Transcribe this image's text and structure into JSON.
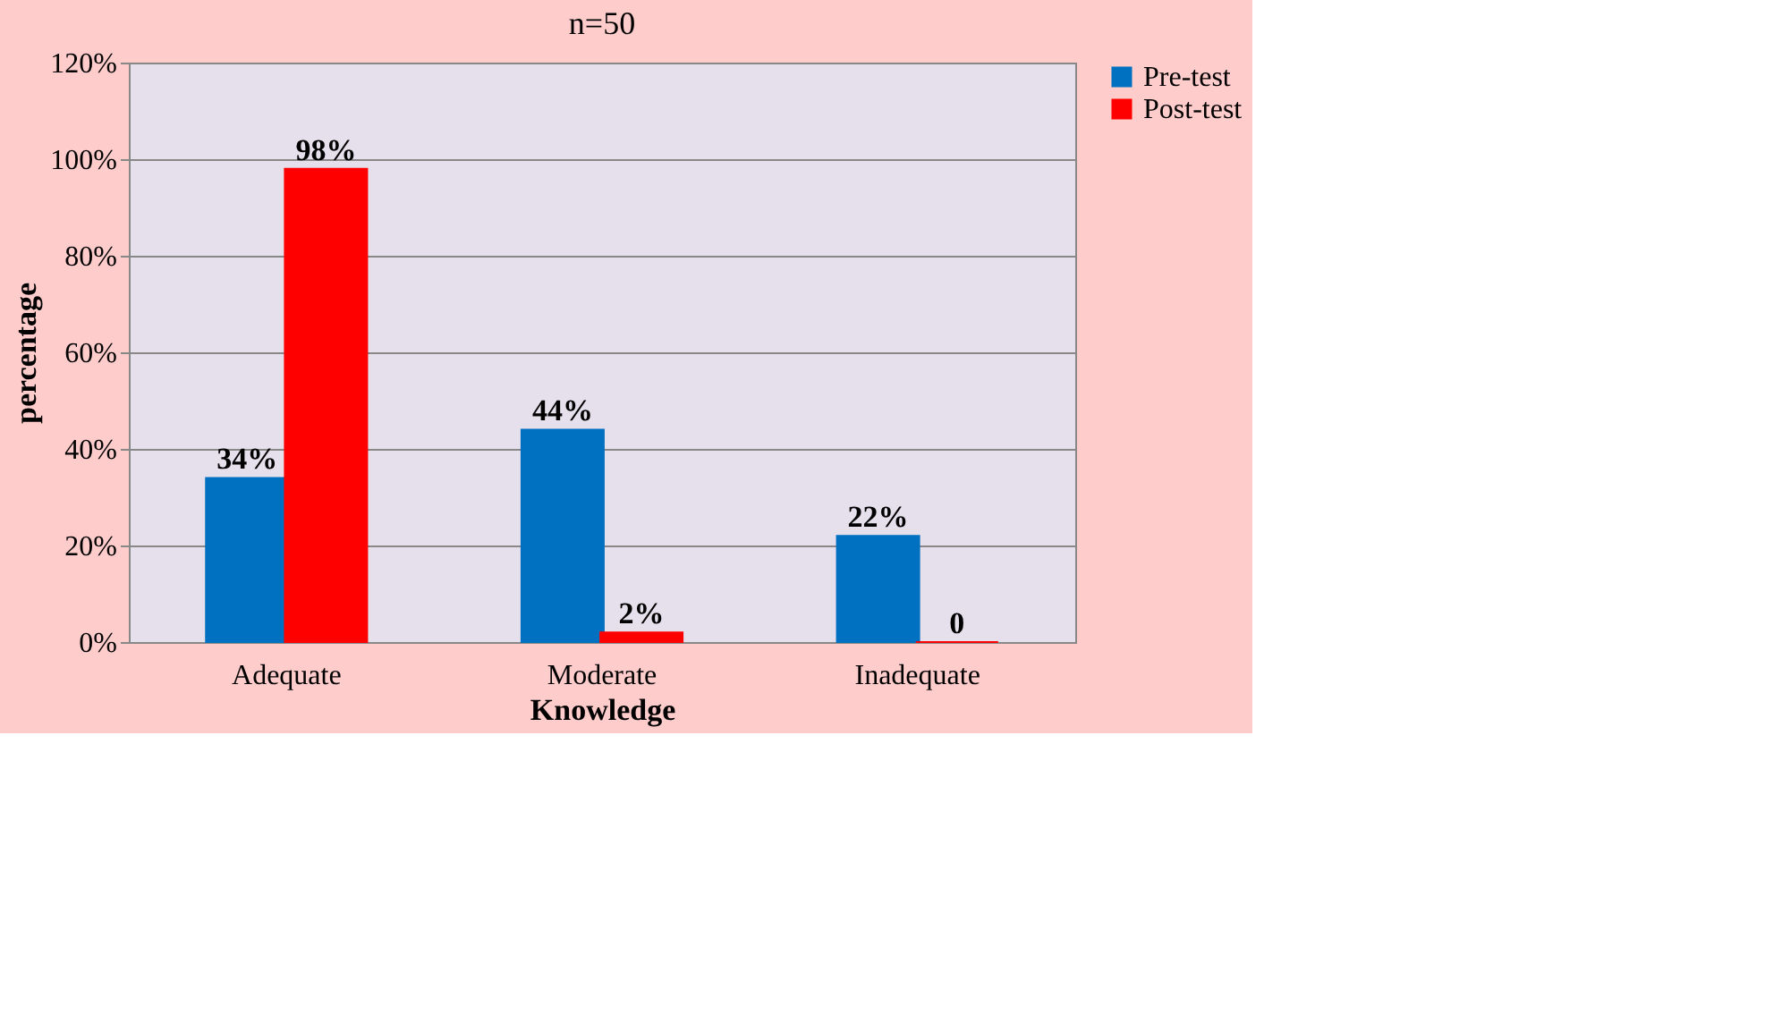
{
  "chart_data": {
    "type": "bar",
    "title": "n=50",
    "xlabel": "Knowledge",
    "ylabel": "percentage",
    "categories": [
      "Adequate",
      "Moderate",
      "Inadequate"
    ],
    "series": [
      {
        "name": "Pre-test",
        "color": "#0070c0",
        "values": [
          34,
          44,
          22
        ],
        "value_labels": [
          "34%",
          "44%",
          "22%"
        ]
      },
      {
        "name": "Post-test",
        "color": "#ff0000",
        "values": [
          98,
          2,
          0
        ],
        "value_labels": [
          "98%",
          "2%",
          "0"
        ]
      }
    ],
    "ylim": [
      0,
      120
    ],
    "yticks": [
      {
        "value": 0,
        "label": "0%"
      },
      {
        "value": 20,
        "label": "20%"
      },
      {
        "value": 40,
        "label": "40%"
      },
      {
        "value": 60,
        "label": "60%"
      },
      {
        "value": 80,
        "label": "80%"
      },
      {
        "value": 100,
        "label": "100%"
      },
      {
        "value": 120,
        "label": "120%"
      }
    ],
    "grid": "y",
    "legend": "right"
  }
}
